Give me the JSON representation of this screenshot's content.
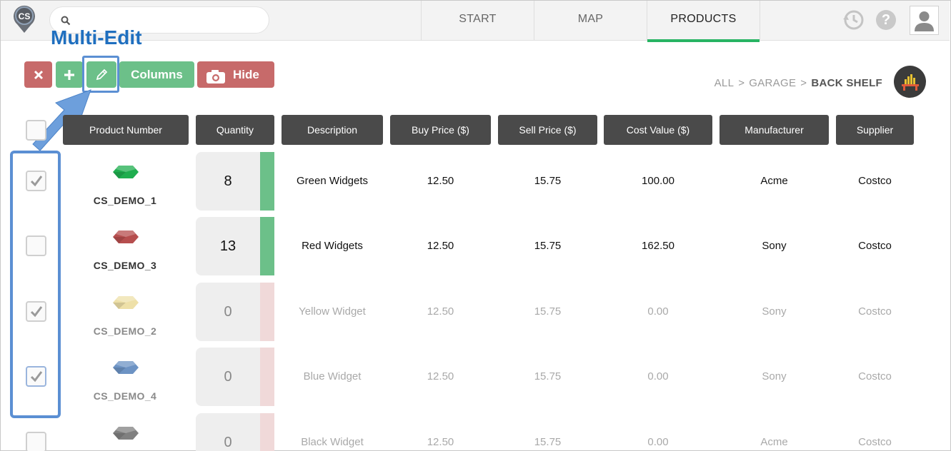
{
  "app": {
    "logo_text": "CS"
  },
  "search": {
    "placeholder": ""
  },
  "nav": {
    "tabs": [
      {
        "label": "START"
      },
      {
        "label": "MAP"
      },
      {
        "label": "PRODUCTS",
        "active": true
      }
    ]
  },
  "annotation": {
    "label": "Multi-Edit"
  },
  "toolbar": {
    "columns_label": "Columns",
    "hide_label": "Hide"
  },
  "breadcrumb": {
    "items": [
      "ALL",
      "GARAGE"
    ],
    "current": "BACK SHELF",
    "separator": ">"
  },
  "table": {
    "headers": [
      "Product Number",
      "Quantity",
      "Description",
      "Buy Price ($)",
      "Sell Price ($)",
      "Cost Value ($)",
      "Manufacturer",
      "Supplier"
    ],
    "rows": [
      {
        "checked": true,
        "product_number": "CS_DEMO_1",
        "gem_color": "#1fae4f",
        "quantity": "8",
        "status": "in-stock",
        "description": "Green Widgets",
        "buy": "12.50",
        "sell": "15.75",
        "cost": "100.00",
        "manufacturer": "Acme",
        "supplier": "Costco"
      },
      {
        "checked": false,
        "product_number": "CS_DEMO_3",
        "gem_color": "#b64e4e",
        "quantity": "13",
        "status": "in-stock",
        "description": "Red Widgets",
        "buy": "12.50",
        "sell": "15.75",
        "cost": "162.50",
        "manufacturer": "Sony",
        "supplier": "Costco"
      },
      {
        "checked": true,
        "product_number": "CS_DEMO_2",
        "gem_color": "#eee0a8",
        "quantity": "0",
        "status": "out-of-stock",
        "description": "Yellow Widget",
        "buy": "12.50",
        "sell": "15.75",
        "cost": "0.00",
        "manufacturer": "Sony",
        "supplier": "Costco"
      },
      {
        "checked": true,
        "product_number": "CS_DEMO_4",
        "gem_color": "#6d93c4",
        "quantity": "0",
        "status": "out-of-stock",
        "description": "Blue Widget",
        "buy": "12.50",
        "sell": "15.75",
        "cost": "0.00",
        "manufacturer": "Sony",
        "supplier": "Costco"
      },
      {
        "checked": false,
        "product_number": "",
        "gem_color": "#808080",
        "quantity": "0",
        "status": "out-of-stock",
        "description": "Black Widget",
        "buy": "12.50",
        "sell": "15.75",
        "cost": "0.00",
        "manufacturer": "Acme",
        "supplier": "Costco"
      }
    ]
  },
  "colors": {
    "in_stock": "#6cc089",
    "out_of_stock": "#f0d9d9",
    "accent": "#28b463",
    "annotation": "#5b8fd3"
  }
}
